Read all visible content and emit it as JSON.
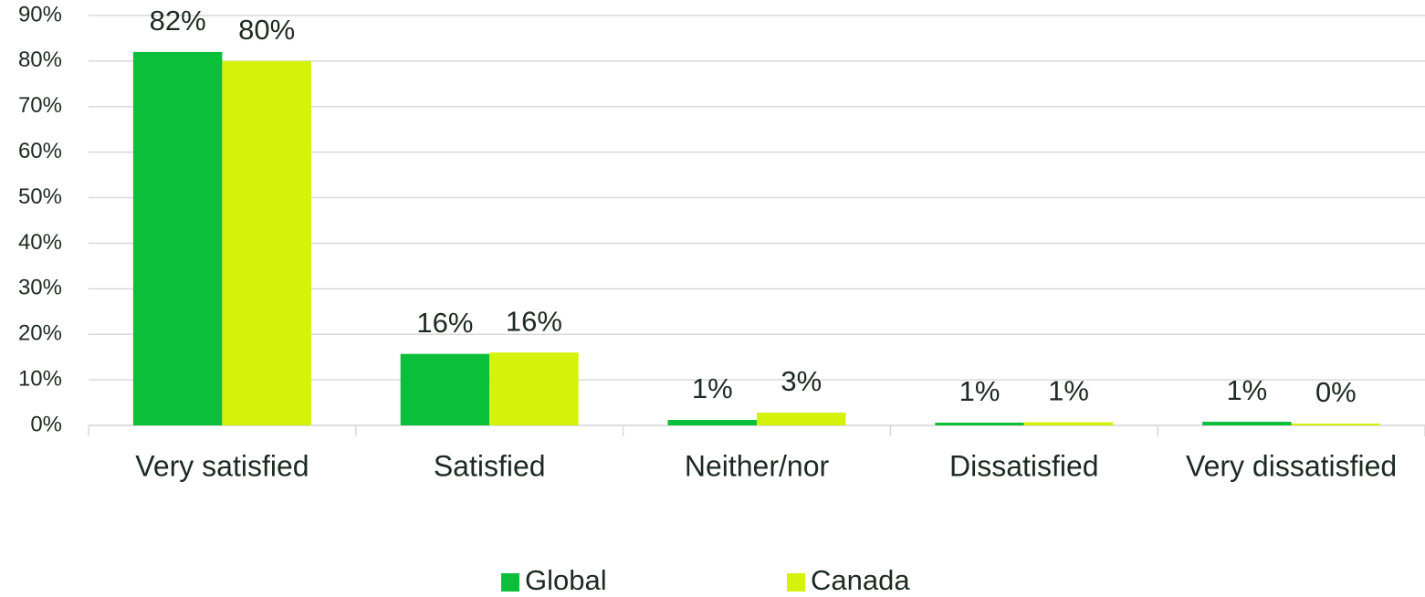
{
  "chart_data": {
    "type": "bar",
    "categories": [
      "Very satisfied",
      "Satisfied",
      "Neither/nor",
      "Dissatisfied",
      "Very dissatisfied"
    ],
    "series": [
      {
        "name": "Global",
        "color": "#0cbf3a",
        "values": [
          82,
          15.7,
          1.2,
          0.6,
          0.8
        ],
        "value_labels": [
          "82%",
          "16%",
          "1%",
          "1%",
          "1%"
        ]
      },
      {
        "name": "Canada",
        "color": "#d5f20d",
        "values": [
          80,
          16,
          2.8,
          0.7,
          0.4
        ],
        "value_labels": [
          "80%",
          "16%",
          "3%",
          "1%",
          "0%"
        ]
      }
    ],
    "ylim": [
      0,
      90
    ],
    "yticks": [
      {
        "value": 0,
        "label": "0%"
      },
      {
        "value": 10,
        "label": "10%"
      },
      {
        "value": 20,
        "label": "20%"
      },
      {
        "value": 30,
        "label": "30%"
      },
      {
        "value": 40,
        "label": "40%"
      },
      {
        "value": 50,
        "label": "50%"
      },
      {
        "value": 60,
        "label": "60%"
      },
      {
        "value": 70,
        "label": "70%"
      },
      {
        "value": 80,
        "label": "80%"
      },
      {
        "value": 90,
        "label": "90%"
      }
    ],
    "grid": true,
    "legend": "bottom"
  }
}
